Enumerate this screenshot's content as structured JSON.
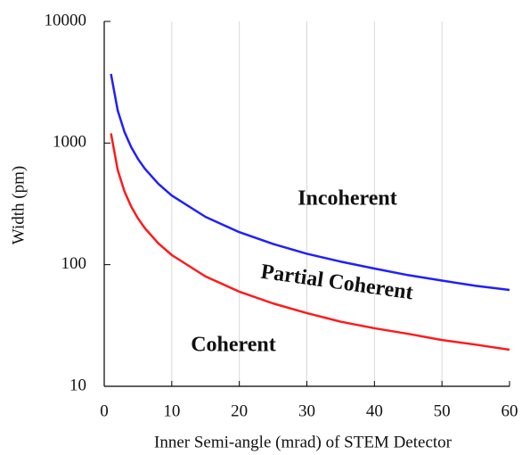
{
  "chart_data": {
    "type": "line",
    "x_label": "Inner Semi-angle (mrad) of STEM Detector",
    "y_label": "Width (pm)",
    "x": [
      1,
      2,
      3,
      4,
      5,
      6,
      8,
      10,
      15,
      20,
      25,
      30,
      35,
      40,
      45,
      50,
      55,
      60
    ],
    "series": [
      {
        "name": "upper",
        "color": "#1f1fff",
        "values": [
          3700,
          1850,
          1233,
          925,
          740,
          617,
          463,
          370,
          247,
          185,
          148,
          123,
          106,
          93,
          82,
          74,
          67,
          62
        ]
      },
      {
        "name": "lower",
        "color": "#ff1a1a",
        "values": [
          1200,
          600,
          400,
          300,
          240,
          200,
          150,
          120,
          80,
          60,
          48,
          40,
          34,
          30,
          27,
          24,
          22,
          20
        ]
      }
    ],
    "xlim": [
      0,
      60
    ],
    "xticks": [
      0,
      10,
      20,
      30,
      40,
      50,
      60
    ],
    "ylim": [
      10,
      10000
    ],
    "yticks": [
      10,
      100,
      1000,
      10000
    ],
    "y_log": true,
    "grid": "x",
    "annotations": [
      "Incoherent",
      "Partial Coherent",
      "Coherent"
    ]
  }
}
